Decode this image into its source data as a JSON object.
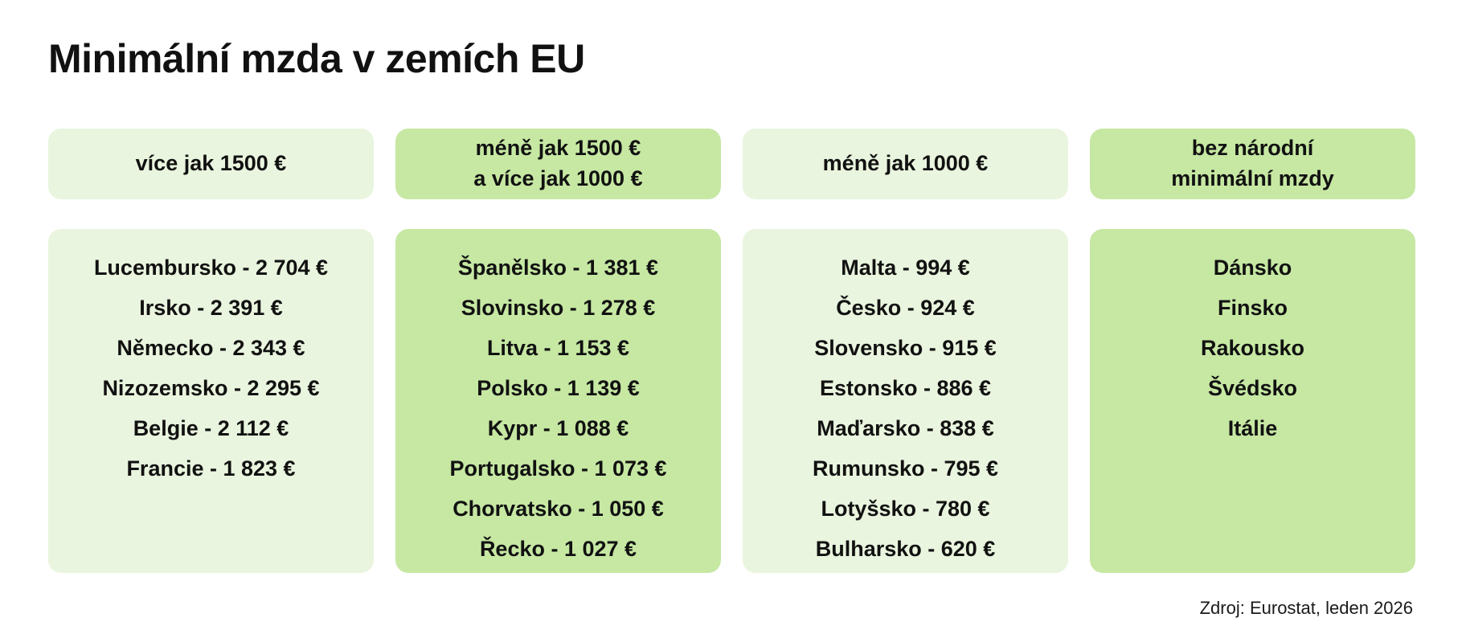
{
  "page": {
    "title": "Minimální mzda v zemích EU",
    "source": "Zdroj: Eurostat, leden 2026"
  },
  "colors": {
    "light_green": "#E9F5DE",
    "medium_green": "#C6E8A3",
    "text": "#111111",
    "background": "#FFFFFF"
  },
  "columns": [
    {
      "id": "vice-jak-1500",
      "header": "více jak 1500 €",
      "tone": "light",
      "items": [
        "Lucembursko - 2 704 €",
        "Irsko - 2 391 €",
        "Německo - 2 343 €",
        "Nizozemsko - 2 295 €",
        "Belgie - 2 112 €",
        "Francie - 1 823 €"
      ]
    },
    {
      "id": "mene-1500-vice-1000",
      "header": "méně jak 1500 €\na více jak 1000 €",
      "tone": "medium",
      "items": [
        "Španělsko - 1 381 €",
        "Slovinsko - 1 278 €",
        "Litva - 1 153 €",
        "Polsko - 1 139 €",
        "Kypr - 1 088 €",
        "Portugalsko - 1 073 €",
        "Chorvatsko - 1 050 €",
        "Řecko - 1 027 €"
      ]
    },
    {
      "id": "mene-jak-1000",
      "header": "méně jak 1000 €",
      "tone": "light",
      "items": [
        "Malta - 994 €",
        "Česko - 924 €",
        "Slovensko - 915 €",
        "Estonsko - 886 €",
        "Maďarsko - 838 €",
        "Rumunsko - 795 €",
        "Lotyšsko - 780 €",
        "Bulharsko - 620 €"
      ]
    },
    {
      "id": "bez-narodni-minimalni-mzdy",
      "header": "bez národní\nminimální mzdy",
      "tone": "medium",
      "items": [
        "Dánsko",
        "Finsko",
        "Rakousko",
        "Švédsko",
        "Itálie"
      ]
    }
  ],
  "chart_data": {
    "type": "table",
    "title": "Minimální mzda v zemích EU",
    "unit": "EUR / month",
    "source": "Zdroj: Eurostat, leden 2026",
    "groups": [
      {
        "label": "více jak 1500 €",
        "series": [
          {
            "name": "Lucembursko",
            "value": 2704
          },
          {
            "name": "Irsko",
            "value": 2391
          },
          {
            "name": "Německo",
            "value": 2343
          },
          {
            "name": "Nizozemsko",
            "value": 2295
          },
          {
            "name": "Belgie",
            "value": 2112
          },
          {
            "name": "Francie",
            "value": 1823
          }
        ]
      },
      {
        "label": "méně jak 1500 € a více jak 1000 €",
        "series": [
          {
            "name": "Španělsko",
            "value": 1381
          },
          {
            "name": "Slovinsko",
            "value": 1278
          },
          {
            "name": "Litva",
            "value": 1153
          },
          {
            "name": "Polsko",
            "value": 1139
          },
          {
            "name": "Kypr",
            "value": 1088
          },
          {
            "name": "Portugalsko",
            "value": 1073
          },
          {
            "name": "Chorvatsko",
            "value": 1050
          },
          {
            "name": "Řecko",
            "value": 1027
          }
        ]
      },
      {
        "label": "méně jak 1000 €",
        "series": [
          {
            "name": "Malta",
            "value": 994
          },
          {
            "name": "Česko",
            "value": 924
          },
          {
            "name": "Slovensko",
            "value": 915
          },
          {
            "name": "Estonsko",
            "value": 886
          },
          {
            "name": "Maďarsko",
            "value": 838
          },
          {
            "name": "Rumunsko",
            "value": 795
          },
          {
            "name": "Lotyšsko",
            "value": 780
          },
          {
            "name": "Bulharsko",
            "value": 620
          }
        ]
      },
      {
        "label": "bez národní minimální mzdy",
        "series": [
          {
            "name": "Dánsko",
            "value": null
          },
          {
            "name": "Finsko",
            "value": null
          },
          {
            "name": "Rakousko",
            "value": null
          },
          {
            "name": "Švédsko",
            "value": null
          },
          {
            "name": "Itálie",
            "value": null
          }
        ]
      }
    ]
  }
}
